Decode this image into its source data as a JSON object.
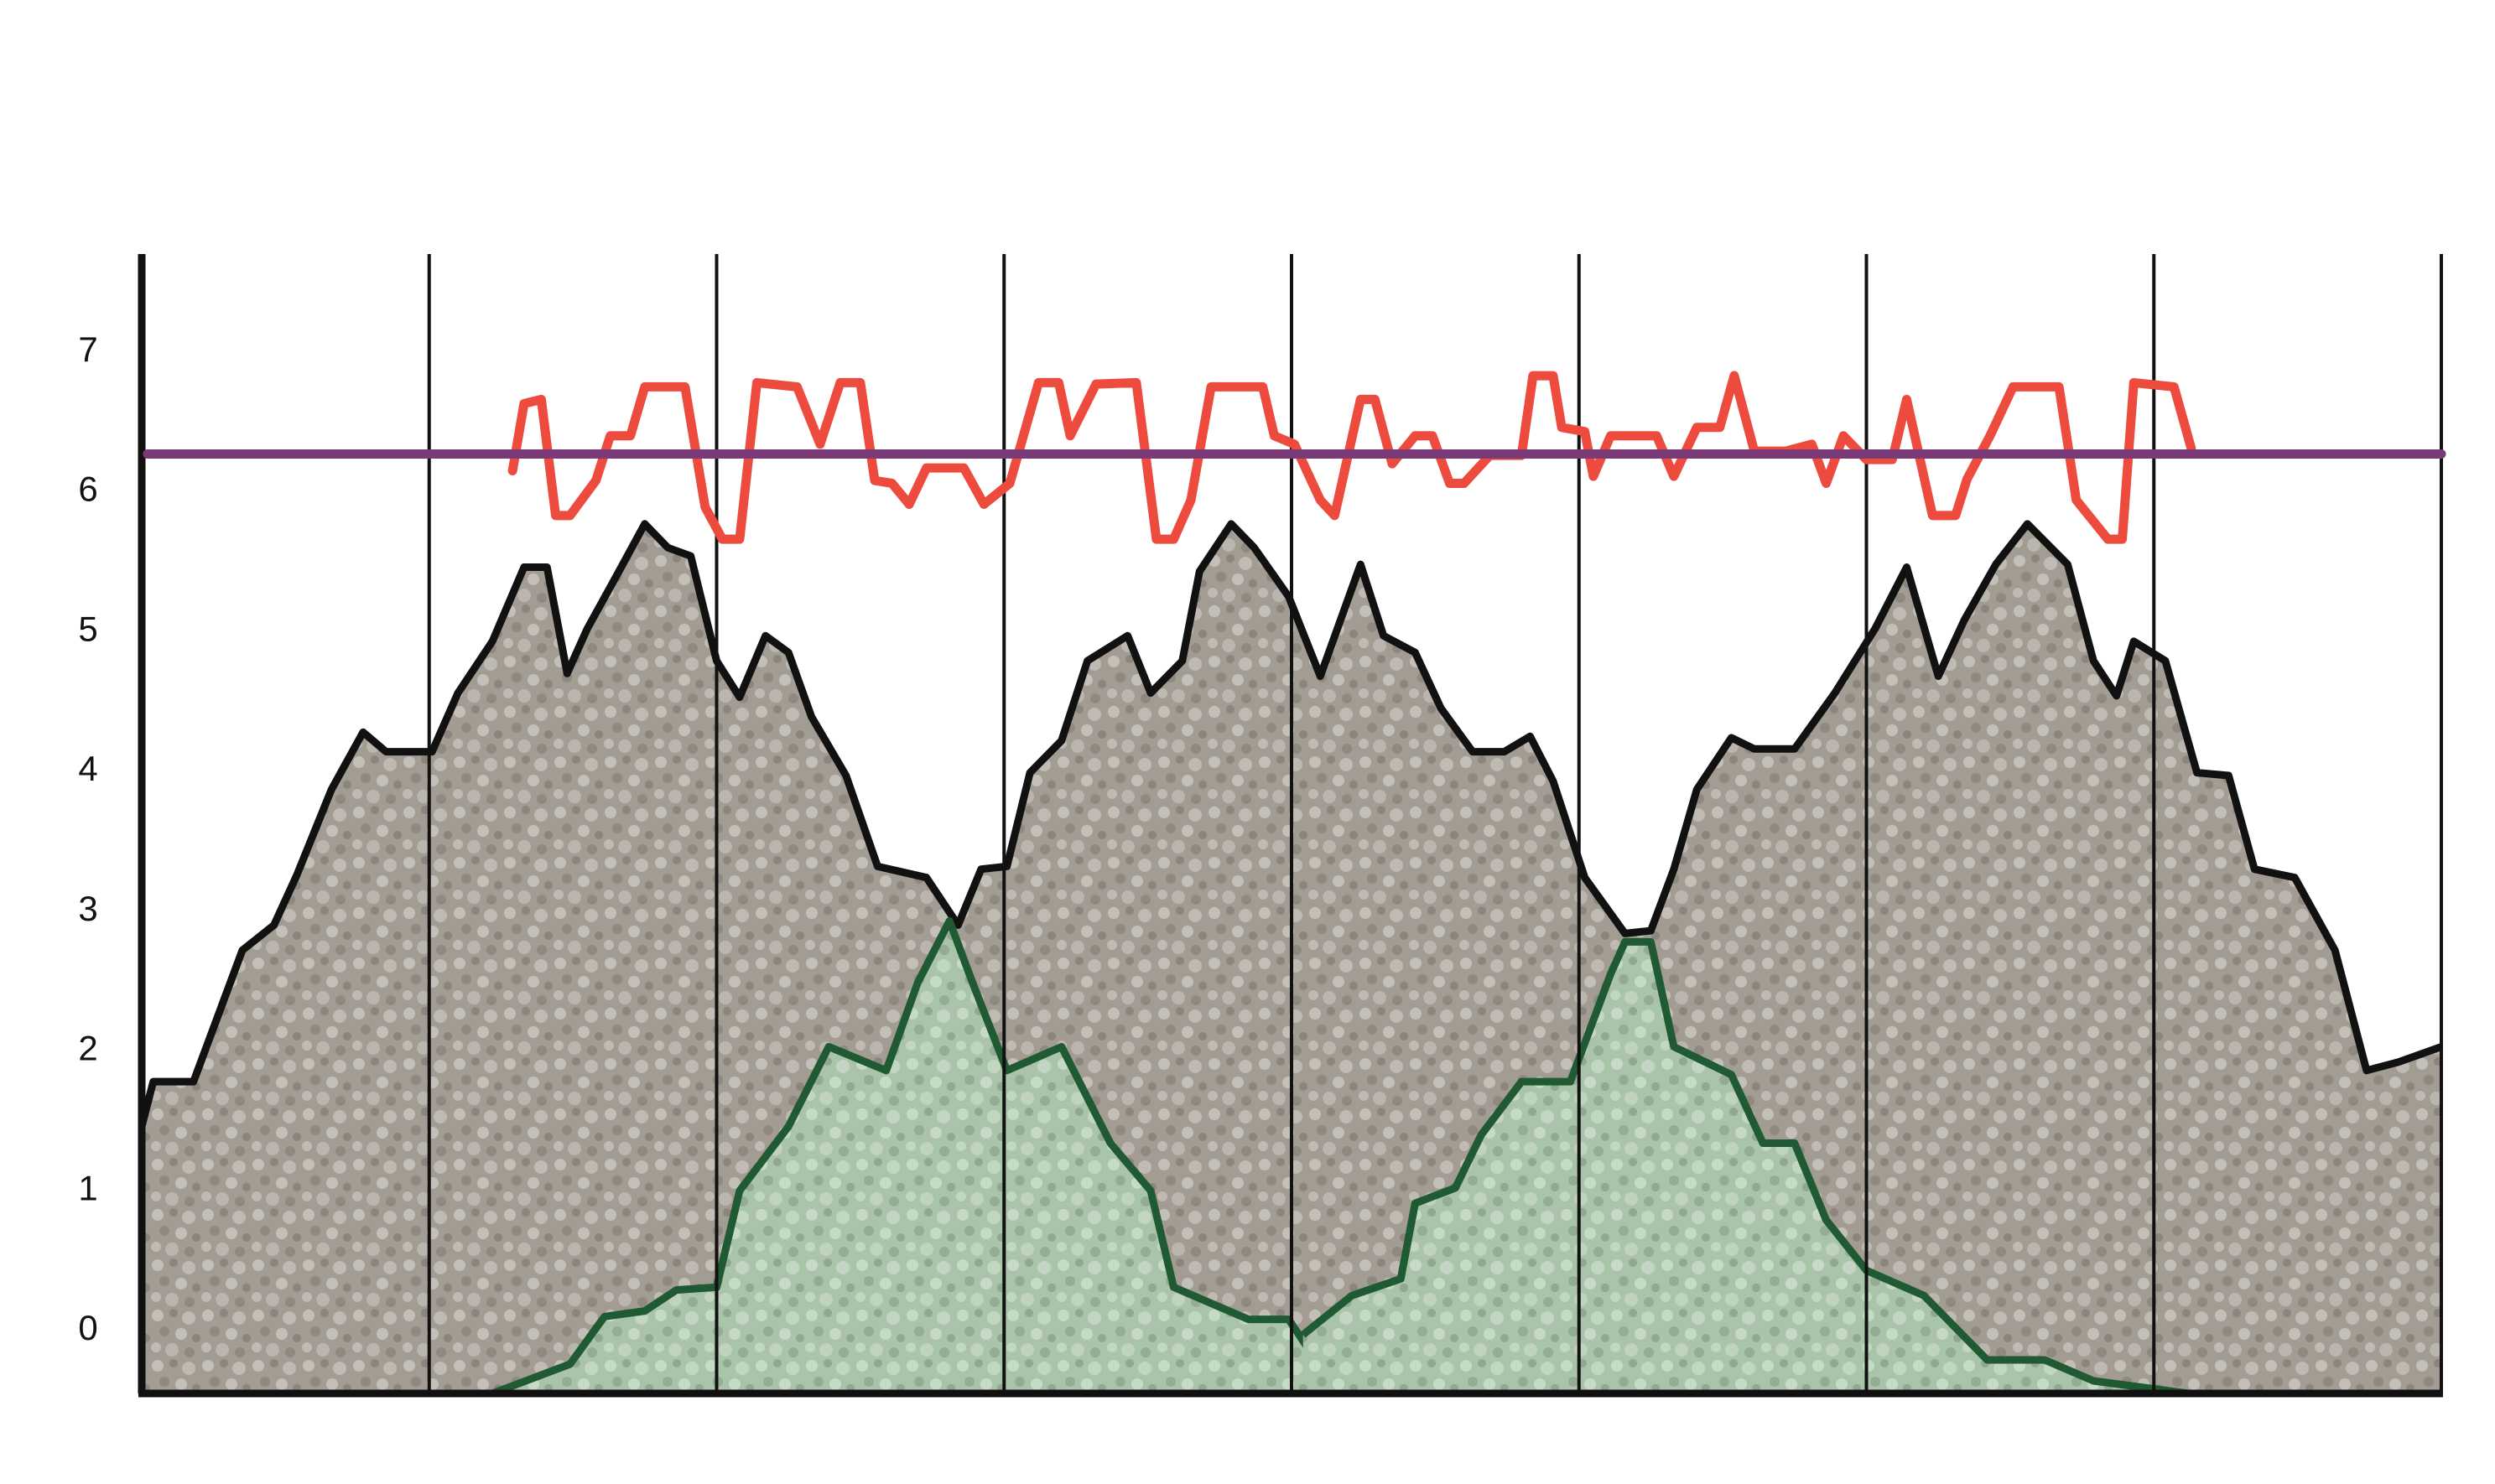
{
  "chart_data": {
    "type": "area",
    "xlim": [
      0,
      8
    ],
    "xticks": [
      0,
      1,
      2,
      3,
      4,
      5,
      6,
      7,
      8
    ],
    "ylim": [
      -0.45,
      7.7
    ],
    "yticks": [
      0,
      1,
      2,
      3,
      4,
      5,
      6,
      7
    ],
    "series": [
      {
        "type": "area",
        "color": "#111111",
        "fill_color": "#a39c93",
        "x": [
          0,
          0.04,
          0.18,
          0.35,
          0.46,
          0.54,
          0.66,
          0.77,
          0.85,
          1.01,
          1.1,
          1.22,
          1.33,
          1.41,
          1.48,
          1.55,
          1.66,
          1.75,
          1.83,
          1.91,
          2.0,
          2.08,
          2.17,
          2.25,
          2.33,
          2.45,
          2.56,
          2.73,
          2.84,
          2.92,
          3.01,
          3.09,
          3.2,
          3.29,
          3.43,
          3.51,
          3.62,
          3.68,
          3.79,
          3.87,
          3.99,
          4.1,
          4.24,
          4.32,
          4.43,
          4.52,
          4.63,
          4.74,
          4.83,
          4.91,
          5.02,
          5.16,
          5.25,
          5.33,
          5.41,
          5.53,
          5.61,
          5.75,
          5.89,
          6.03,
          6.14,
          6.25,
          6.34,
          6.45,
          6.56,
          6.7,
          6.79,
          6.87,
          6.93,
          7.04,
          7.15,
          7.26,
          7.35,
          7.49,
          7.63,
          7.74,
          7.85,
          8.0
        ],
        "values": [
          1.46,
          1.78,
          1.78,
          2.72,
          2.9,
          3.26,
          3.87,
          4.28,
          4.14,
          4.14,
          4.56,
          4.93,
          5.46,
          5.46,
          4.7,
          5.02,
          5.43,
          5.77,
          5.6,
          5.54,
          4.79,
          4.53,
          4.97,
          4.85,
          4.39,
          3.97,
          3.32,
          3.24,
          2.9,
          3.3,
          3.32,
          3.99,
          4.22,
          4.79,
          4.97,
          4.56,
          4.79,
          5.43,
          5.77,
          5.6,
          5.25,
          4.68,
          5.48,
          4.97,
          4.85,
          4.45,
          4.14,
          4.14,
          4.25,
          3.93,
          3.24,
          2.84,
          2.86,
          3.3,
          3.87,
          4.24,
          4.16,
          4.16,
          4.56,
          5.02,
          5.46,
          4.68,
          5.08,
          5.48,
          5.77,
          5.48,
          4.79,
          4.54,
          4.93,
          4.79,
          3.99,
          3.97,
          3.3,
          3.24,
          2.72,
          1.86,
          1.92,
          2.03
        ]
      },
      {
        "type": "area",
        "color": "#1f5a32",
        "fill_color": "#a9c4a9",
        "x": [
          1.22,
          1.49,
          1.61,
          1.75,
          1.86,
          2.0,
          2.08,
          2.25,
          2.39,
          2.59,
          2.7,
          2.81,
          2.89,
          3.01,
          3.2,
          3.37,
          3.51,
          3.59,
          3.85,
          3.99,
          4.1,
          4.32,
          4.38,
          null,
          4.04,
          4.21,
          4.38,
          4.43,
          4.57,
          4.66,
          4.8,
          4.97,
          5.11,
          5.16,
          5.25,
          5.33,
          5.53,
          5.64,
          5.75,
          5.86,
          6.0,
          6.2,
          6.42,
          6.62,
          6.79,
          7.12
        ],
        "values": [
          -0.45,
          -0.24,
          0.1,
          0.14,
          0.29,
          0.31,
          1.0,
          1.46,
          2.03,
          1.86,
          2.49,
          2.93,
          2.49,
          1.86,
          2.03,
          1.34,
          1.0,
          0.31,
          0.08,
          0.08,
          -0.26,
          -0.4,
          -0.45,
          null,
          -0.03,
          0.25,
          0.37,
          0.91,
          1.02,
          1.4,
          1.78,
          1.78,
          2.55,
          2.78,
          2.78,
          2.03,
          1.83,
          1.34,
          1.34,
          0.79,
          0.43,
          0.25,
          -0.21,
          -0.21,
          -0.36,
          -0.45
        ]
      },
      {
        "type": "line",
        "color": "#ee4b3f",
        "x": [
          1.29,
          1.33,
          1.39,
          1.44,
          1.49,
          1.58,
          1.63,
          1.7,
          1.75,
          1.89,
          1.96,
          2.02,
          2.08,
          2.14,
          2.28,
          2.36,
          2.43,
          2.5,
          2.55,
          2.61,
          2.67,
          2.73,
          2.86,
          2.93,
          3.02,
          3.12,
          3.19,
          3.23,
          3.32,
          3.46,
          3.53,
          3.59,
          3.65,
          3.72,
          3.9,
          3.94,
          4.01,
          4.1,
          4.15,
          4.24,
          4.29,
          4.35,
          4.43,
          4.49,
          4.55,
          4.6,
          4.69,
          4.8,
          4.84,
          4.91,
          4.94,
          5.02,
          5.05,
          5.11,
          5.27,
          5.33,
          5.41,
          5.49,
          5.54,
          5.61,
          5.72,
          5.81,
          5.86,
          5.92,
          6.0,
          6.09,
          6.14,
          6.23,
          6.31,
          6.35,
          6.43,
          6.51,
          6.67,
          6.73,
          6.84,
          6.89,
          6.93,
          7.07,
          7.13
        ],
        "values": [
          6.15,
          6.63,
          6.66,
          5.83,
          5.83,
          6.08,
          6.4,
          6.4,
          6.75,
          6.75,
          5.89,
          5.66,
          5.66,
          6.78,
          6.75,
          6.34,
          6.78,
          6.78,
          6.08,
          6.06,
          5.91,
          6.17,
          6.17,
          5.91,
          6.06,
          6.78,
          6.78,
          6.4,
          6.77,
          6.78,
          5.66,
          5.66,
          5.94,
          6.75,
          6.75,
          6.4,
          6.34,
          5.94,
          5.83,
          6.66,
          6.66,
          6.2,
          6.4,
          6.4,
          6.06,
          6.06,
          6.26,
          6.26,
          6.83,
          6.83,
          6.46,
          6.43,
          6.11,
          6.4,
          6.4,
          6.11,
          6.46,
          6.46,
          6.83,
          6.29,
          6.29,
          6.34,
          6.06,
          6.4,
          6.23,
          6.23,
          6.66,
          5.83,
          5.83,
          6.09,
          6.4,
          6.75,
          6.75,
          5.94,
          5.66,
          5.66,
          6.78,
          6.75,
          6.31
        ]
      },
      {
        "type": "line",
        "color": "#7a3a78",
        "x": [
          0.02,
          8
        ],
        "values": [
          6.27,
          6.27
        ]
      }
    ]
  }
}
